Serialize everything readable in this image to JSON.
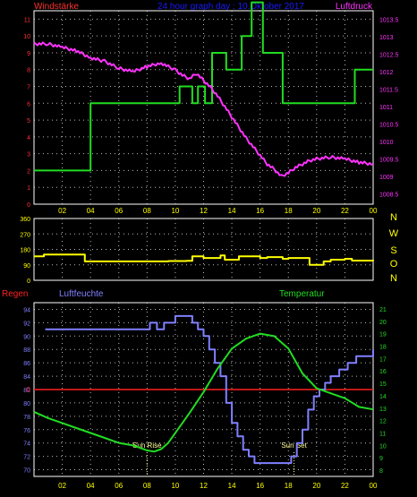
{
  "colors": {
    "background": "#000000",
    "frame": "#ffffff",
    "grid": "#bbbbbb",
    "windstaerke": "#ff3030",
    "wind_line": "#22dd22",
    "luftdruck": "#ff33ff",
    "direction": "#ffff00",
    "direction_labels": "#ffff00",
    "regen": "#ff2020",
    "luftfeuchte": "#8080ff",
    "temperatur": "#22dd22",
    "hour_labels": "#ffff00",
    "sun_marker": "#ffff99"
  },
  "header": {
    "left_label": "Windstärke",
    "title": "24 hour graph day : 10.Oktober 2017",
    "right_label": "Luftdruck"
  },
  "chart_data": [
    {
      "type": "line",
      "panel": "wind_pressure",
      "x_ticks": [
        "02",
        "04",
        "06",
        "08",
        "10",
        "12",
        "14",
        "16",
        "18",
        "20",
        "22",
        "00"
      ],
      "y_left": {
        "label": "Windstärke",
        "ticks": [
          0,
          1,
          2,
          3,
          4,
          5,
          6,
          7,
          8,
          9,
          10,
          11
        ],
        "ylim": [
          0,
          11.5
        ]
      },
      "y_right": {
        "label": "Luftdruck",
        "ticks": [
          1008.5,
          1009,
          1009.5,
          1010,
          1010.5,
          1011,
          1011.5,
          1012,
          1012.5,
          1013,
          1013.5
        ],
        "ylim": [
          1008.2,
          1013.75
        ]
      },
      "series": [
        {
          "name": "Windstärke",
          "axis": "left",
          "step": true,
          "x": [
            0,
            4,
            10.3,
            11.2,
            11.6,
            12.1,
            12.6,
            13.6,
            14.7,
            15.4,
            16.2,
            17.6,
            22.7,
            24
          ],
          "y": [
            2,
            6,
            7,
            6,
            7,
            6,
            9,
            8,
            10,
            12,
            9,
            6,
            8,
            8
          ]
        },
        {
          "name": "Luftdruck",
          "axis": "right",
          "x": [
            0,
            1,
            2,
            3,
            4,
            5,
            6,
            7,
            8,
            9,
            10,
            10.5,
            11,
            11.5,
            12,
            12.5,
            13,
            13.5,
            14,
            14.5,
            15,
            15.5,
            16,
            16.5,
            17,
            17.5,
            18,
            18.5,
            19,
            19.5,
            20,
            21,
            22,
            23,
            24
          ],
          "y": [
            1012.8,
            1012.8,
            1012.7,
            1012.6,
            1012.4,
            1012.3,
            1012.1,
            1012.0,
            1012.15,
            1012.25,
            1012.05,
            1011.9,
            1011.8,
            1011.95,
            1011.75,
            1011.55,
            1011.3,
            1011.0,
            1010.7,
            1010.4,
            1010.1,
            1009.85,
            1009.6,
            1009.35,
            1009.2,
            1009.0,
            1009.1,
            1009.25,
            1009.35,
            1009.45,
            1009.5,
            1009.55,
            1009.5,
            1009.4,
            1009.35
          ]
        }
      ]
    },
    {
      "type": "line",
      "panel": "wind_direction",
      "y_ticks": [
        0,
        90,
        180,
        270,
        360
      ],
      "ylim": [
        0,
        360
      ],
      "direction_labels": [
        "N",
        "W",
        "S",
        "O",
        "N"
      ],
      "series": [
        {
          "name": "Windrichtung",
          "step": true,
          "x": [
            0,
            0.7,
            3.6,
            9.5,
            10.8,
            11.2,
            12.0,
            13.2,
            13.5,
            14.5,
            16.0,
            16.5,
            17.6,
            18.0,
            19.5,
            20.5,
            21.0,
            22.0,
            22.5,
            24
          ],
          "y": [
            140,
            150,
            110,
            112,
            113,
            140,
            130,
            145,
            120,
            140,
            130,
            135,
            125,
            130,
            90,
            110,
            120,
            125,
            115,
            120
          ]
        }
      ]
    },
    {
      "type": "line",
      "panel": "humidity_temperature",
      "labels": {
        "regen": "Regen",
        "luftfeuchte": "Luftfeuchte",
        "temperatur": "Temperatur"
      },
      "x_ticks": [
        "02",
        "04",
        "06",
        "08",
        "10",
        "12",
        "14",
        "16",
        "18",
        "20",
        "22",
        "00"
      ],
      "y_left": {
        "label": "Luftfeuchte",
        "ticks": [
          70,
          72,
          74,
          76,
          78,
          80,
          82,
          84,
          86,
          88,
          90,
          92,
          94
        ],
        "ylim": [
          69,
          95
        ]
      },
      "y_right": {
        "label": "Temperatur",
        "ticks": [
          8,
          9,
          10,
          11,
          12,
          13,
          14,
          15,
          16,
          17,
          18,
          19,
          20,
          21
        ],
        "ylim": [
          7.5,
          21.5
        ]
      },
      "regen_value": "0",
      "annotations": [
        {
          "label": "Sun Rise",
          "x": 8.0
        },
        {
          "label": "Sun Set",
          "x": 18.4
        }
      ],
      "series": [
        {
          "name": "Luftfeuchte",
          "axis": "left",
          "step": true,
          "x": [
            0.8,
            8.0,
            8.2,
            8.7,
            9.2,
            9.5,
            10.0,
            10.3,
            10.8,
            11.2,
            11.6,
            12.0,
            12.4,
            12.8,
            13.2,
            13.6,
            14.0,
            14.4,
            14.8,
            15.2,
            15.6,
            17.8,
            18.2,
            18.6,
            19.0,
            19.4,
            19.8,
            20.2,
            20.6,
            21.0,
            21.6,
            22.2,
            22.8,
            23.4,
            24
          ],
          "y": [
            91,
            91,
            92,
            91,
            92,
            92,
            93,
            93,
            93,
            92,
            91,
            90,
            88,
            86,
            84,
            80,
            77,
            75,
            73,
            72,
            71,
            71,
            72,
            74,
            76,
            79,
            81,
            82,
            83,
            84,
            85,
            86,
            87,
            87,
            88
          ]
        },
        {
          "name": "Temperatur",
          "axis": "right",
          "x": [
            0,
            1,
            2,
            3,
            4,
            5,
            6,
            7,
            7.5,
            8,
            8.5,
            9,
            9.5,
            10,
            10.5,
            11,
            12,
            13,
            14,
            15,
            16,
            17,
            18,
            19,
            20,
            21,
            22,
            23,
            24
          ],
          "y": [
            12.7,
            12.2,
            11.8,
            11.4,
            11.0,
            10.6,
            10.2,
            10.0,
            9.8,
            9.6,
            9.5,
            9.7,
            10.2,
            11.0,
            11.8,
            12.6,
            14.3,
            16.2,
            17.8,
            18.6,
            19.0,
            18.8,
            17.8,
            15.8,
            14.6,
            14.2,
            13.8,
            13.1,
            12.9
          ]
        }
      ]
    }
  ]
}
